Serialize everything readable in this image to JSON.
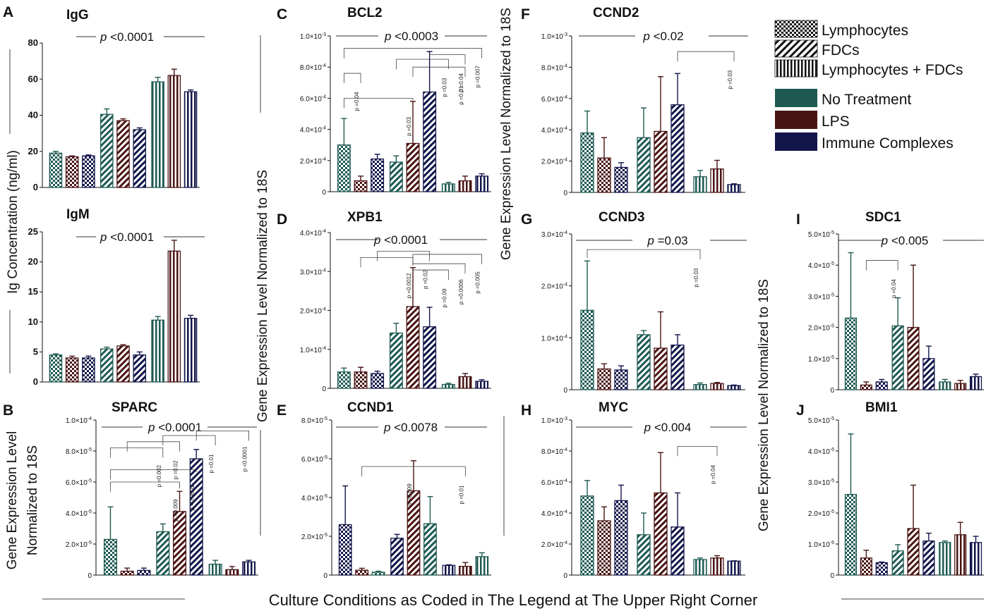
{
  "figure": {
    "x_caption": "Culture Conditions as Coded in The Legend at The Upper Right Corner",
    "ylabel_ig": "Ig Concentration (ng/ml)",
    "ylabel_gene_left": "Gene Expression Level Normalized to 18S",
    "ylabel_gene_mid": "Gene Expression Level Normalized to 18S",
    "ylabel_gene_right": "Gene Expression Level Normalized to 18S",
    "ylabel_sparc": [
      "Gene Expression Level",
      "Normalized to 18S"
    ]
  },
  "legend": {
    "patterns": [
      "Lymphocytes",
      "FDCs",
      "Lymphocytes + FDCs"
    ],
    "treatments": [
      "No Treatment",
      "LPS",
      "Immune Complexes"
    ]
  },
  "colors": {
    "no_treatment": "#1e5a52",
    "lps": "#4a1414",
    "immune_complexes": "#13164a",
    "pattern_lymphocytes": "checker",
    "pattern_fdcs": "diagonal",
    "pattern_lymph_fdcs": "vertical"
  },
  "chart_data": [
    {
      "id": "A",
      "title": "IgG",
      "type": "bar",
      "unit": "ng/ml",
      "ylim": [
        0,
        80
      ],
      "ticks": [
        "0",
        "20",
        "40",
        "60",
        "80"
      ],
      "pvalue": "<0.0001",
      "groups": [
        {
          "pattern": "checker",
          "colors": [
            "teal",
            "maroon",
            "navy"
          ],
          "values": [
            19,
            17,
            17.5
          ],
          "errors": [
            1,
            0.5,
            0.5
          ]
        },
        {
          "pattern": "diag",
          "colors": [
            "teal",
            "maroon",
            "navy"
          ],
          "values": [
            40.5,
            37,
            32
          ],
          "errors": [
            3,
            1,
            1
          ]
        },
        {
          "pattern": "vert",
          "colors": [
            "teal",
            "maroon",
            "navy"
          ],
          "values": [
            58.5,
            62,
            53
          ],
          "errors": [
            2.5,
            3.5,
            1
          ]
        }
      ],
      "brackets": []
    },
    {
      "id": "",
      "title": "IgM",
      "type": "bar",
      "unit": "ng/ml",
      "ylim": [
        0,
        25
      ],
      "ticks": [
        "0",
        "5",
        "10",
        "15",
        "20",
        "25"
      ],
      "pvalue": "<0.0001",
      "groups": [
        {
          "pattern": "checker",
          "colors": [
            "teal",
            "maroon",
            "navy"
          ],
          "values": [
            4.5,
            4,
            4
          ],
          "errors": [
            0.2,
            0.3,
            0.3
          ]
        },
        {
          "pattern": "diag",
          "colors": [
            "teal",
            "maroon",
            "navy"
          ],
          "values": [
            5.5,
            6,
            4.5
          ],
          "errors": [
            0.3,
            0.2,
            0.5
          ]
        },
        {
          "pattern": "vert",
          "colors": [
            "teal",
            "maroon",
            "navy"
          ],
          "values": [
            10.3,
            21.8,
            10.6
          ],
          "errors": [
            0.6,
            1.8,
            0.5
          ]
        }
      ],
      "brackets": []
    },
    {
      "id": "B",
      "title": "SPARC",
      "type": "bar",
      "unit": "-5",
      "ylim": [
        0,
        10
      ],
      "ticks": [
        "0",
        "2.0",
        "4.0",
        "6.0",
        "8.0",
        "1.0"
      ],
      "pvalue": "<0.0001",
      "groups": [
        {
          "pattern": "checker",
          "colors": [
            "teal",
            "maroon",
            "navy"
          ],
          "values": [
            2.3,
            0.25,
            0.3
          ],
          "errors": [
            2.1,
            0.2,
            0.15
          ]
        },
        {
          "pattern": "diag",
          "colors": [
            "teal",
            "maroon",
            "navy"
          ],
          "values": [
            2.8,
            4.1,
            7.5
          ],
          "errors": [
            0.5,
            1.3,
            0.6
          ]
        },
        {
          "pattern": "vert",
          "colors": [
            "teal",
            "maroon",
            "navy"
          ],
          "values": [
            0.7,
            0.35,
            0.85
          ],
          "errors": [
            0.25,
            0.2,
            0.1
          ]
        }
      ],
      "brackets": [
        {
          "a": 0,
          "b": 4,
          "level": 0.6,
          "label": "p =0.009"
        },
        {
          "a": 0,
          "b": 5,
          "level": 0.68,
          "label": "p <0.0001"
        },
        {
          "a": 0,
          "b": 3,
          "level": 0.82,
          "label": "p =0.002"
        },
        {
          "a": 1,
          "b": 4,
          "level": 0.86,
          "label": "p =0.02"
        },
        {
          "a": 3,
          "b": 6,
          "level": 0.9,
          "label": "p =0.01"
        },
        {
          "a": 5,
          "b": 8,
          "level": 0.93,
          "label": "p <0.0001"
        }
      ]
    },
    {
      "id": "C",
      "title": "BCL2",
      "type": "bar",
      "unit": "-4",
      "ylim": [
        0,
        10
      ],
      "ticks": [
        "0",
        "2.0",
        "4.0",
        "6.0",
        "8.0",
        "1.0"
      ],
      "pvalue": "<0.0003",
      "groups": [
        {
          "pattern": "checker",
          "colors": [
            "teal",
            "maroon",
            "navy"
          ],
          "values": [
            3.0,
            0.7,
            2.1
          ],
          "errors": [
            1.7,
            0.3,
            0.3
          ]
        },
        {
          "pattern": "diag",
          "colors": [
            "teal",
            "maroon",
            "navy"
          ],
          "values": [
            1.9,
            3.1,
            6.4
          ],
          "errors": [
            0.4,
            2.7,
            2.6
          ]
        },
        {
          "pattern": "vert",
          "colors": [
            "teal",
            "maroon",
            "navy"
          ],
          "values": [
            0.5,
            0.7,
            1.0
          ],
          "errors": [
            0.1,
            0.3,
            0.15
          ]
        }
      ],
      "brackets": [
        {
          "a": 0,
          "b": 1,
          "level": 0.76,
          "label": "p =0.04"
        },
        {
          "a": 0,
          "b": 4,
          "level": 0.6,
          "label": "p =0.03"
        },
        {
          "a": 0,
          "b": 8,
          "level": 0.92,
          "label": "p =0.007"
        },
        {
          "a": 3,
          "b": 6,
          "level": 0.85,
          "label": "p =0.03"
        },
        {
          "a": 4,
          "b": 7,
          "level": 0.8,
          "label": "p =0.01"
        },
        {
          "a": 5,
          "b": 7,
          "level": 0.88,
          "label": "p =0.04"
        }
      ]
    },
    {
      "id": "D",
      "title": "XPB1",
      "type": "bar",
      "unit": "-4",
      "ylim": [
        0,
        4
      ],
      "ticks": [
        "0",
        "1.0",
        "2.0",
        "3.0",
        "4.0"
      ],
      "pvalue": "<0.0001",
      "groups": [
        {
          "pattern": "checker",
          "colors": [
            "teal",
            "maroon",
            "navy"
          ],
          "values": [
            0.42,
            0.42,
            0.38
          ],
          "errors": [
            0.1,
            0.12,
            0.06
          ]
        },
        {
          "pattern": "diag",
          "colors": [
            "teal",
            "maroon",
            "navy"
          ],
          "values": [
            1.42,
            2.1,
            1.58
          ],
          "errors": [
            0.25,
            1.0,
            0.5
          ]
        },
        {
          "pattern": "vert",
          "colors": [
            "teal",
            "maroon",
            "navy"
          ],
          "values": [
            0.1,
            0.3,
            0.18
          ],
          "errors": [
            0.03,
            0.08,
            0.04
          ]
        }
      ],
      "brackets": [
        {
          "a": 1,
          "b": 4,
          "level": 0.84,
          "label": "p =0.0012"
        },
        {
          "a": 2,
          "b": 5,
          "level": 0.88,
          "label": "p =0.02"
        },
        {
          "a": 4,
          "b": 6,
          "level": 0.76,
          "label": "p =0.09"
        },
        {
          "a": 4,
          "b": 7,
          "level": 0.8,
          "label": "p =0.0006"
        },
        {
          "a": 4,
          "b": 8,
          "level": 0.86,
          "label": "p =0.005"
        }
      ]
    },
    {
      "id": "E",
      "title": "CCND1",
      "type": "bar",
      "unit": "-5",
      "ylim": [
        0,
        8
      ],
      "ticks": [
        "0",
        "2.0",
        "4.0",
        "6.0",
        "8.0"
      ],
      "pvalue": "<0.0078",
      "groups": [
        {
          "pattern": "checker",
          "colors": [
            "navy",
            "maroon",
            "teal"
          ],
          "values": [
            2.6,
            0.25,
            0.15
          ],
          "errors": [
            2.0,
            0.1,
            0.05
          ]
        },
        {
          "pattern": "diag",
          "colors": [
            "navy",
            "maroon",
            "teal"
          ],
          "values": [
            1.9,
            4.35,
            2.65
          ],
          "errors": [
            0.2,
            1.55,
            1.4
          ]
        },
        {
          "pattern": "vert",
          "colors": [
            "navy",
            "maroon",
            "teal"
          ],
          "values": [
            0.5,
            0.45,
            0.95
          ],
          "errors": [
            0.03,
            0.2,
            0.2
          ]
        }
      ],
      "brackets": [
        {
          "a": 1,
          "b": 4,
          "level": 0.7,
          "label": "p =0.009"
        },
        {
          "a": 4,
          "b": 7,
          "level": 0.7,
          "label": "p =0.01"
        }
      ]
    },
    {
      "id": "F",
      "title": "CCND2",
      "type": "bar",
      "unit": "-4",
      "ylim": [
        0,
        10
      ],
      "ticks": [
        "0",
        "2.0",
        "4.0",
        "6.0",
        "8.0",
        "1.0"
      ],
      "pvalue": "<0.02",
      "groups": [
        {
          "pattern": "checker",
          "colors": [
            "teal",
            "maroon",
            "navy"
          ],
          "values": [
            3.8,
            2.2,
            1.6
          ],
          "errors": [
            1.4,
            1.3,
            0.3
          ]
        },
        {
          "pattern": "diag",
          "colors": [
            "teal",
            "maroon",
            "navy"
          ],
          "values": [
            3.5,
            3.9,
            5.6
          ],
          "errors": [
            1.9,
            3.5,
            2.0
          ]
        },
        {
          "pattern": "vert",
          "colors": [
            "teal",
            "maroon",
            "navy"
          ],
          "values": [
            1.0,
            1.5,
            0.5
          ],
          "errors": [
            0.4,
            0.55,
            0.05
          ]
        }
      ],
      "brackets": [
        {
          "a": 5,
          "b": 8,
          "level": 0.9,
          "label": "p =0.03"
        }
      ]
    },
    {
      "id": "G",
      "title": "CCND3",
      "type": "bar",
      "unit": "-4",
      "ylim": [
        0,
        3
      ],
      "ticks": [
        "0",
        "1.0",
        "2.0",
        "3.0"
      ],
      "pvalue": "=0.03",
      "groups": [
        {
          "pattern": "checker",
          "colors": [
            "teal",
            "maroon",
            "navy"
          ],
          "values": [
            1.53,
            0.4,
            0.38
          ],
          "errors": [
            0.95,
            0.1,
            0.08
          ]
        },
        {
          "pattern": "diag",
          "colors": [
            "teal",
            "maroon",
            "navy"
          ],
          "values": [
            1.06,
            0.8,
            0.86
          ],
          "errors": [
            0.08,
            0.7,
            0.2
          ]
        },
        {
          "pattern": "vert",
          "colors": [
            "teal",
            "maroon",
            "navy"
          ],
          "values": [
            0.1,
            0.12,
            0.08
          ],
          "errors": [
            0.03,
            0.02,
            0.01
          ]
        }
      ],
      "brackets": [
        {
          "a": 0,
          "b": 6,
          "level": 0.9,
          "label": "p =0.03"
        }
      ]
    },
    {
      "id": "H",
      "title": "MYC",
      "type": "bar",
      "unit": "-4",
      "ylim": [
        0,
        10
      ],
      "ticks": [
        "0",
        "2.0",
        "4.0",
        "6.0",
        "8.0",
        "1.0"
      ],
      "pvalue": "<0.004",
      "groups": [
        {
          "pattern": "checker",
          "colors": [
            "teal",
            "maroon",
            "navy"
          ],
          "values": [
            5.1,
            3.5,
            4.8
          ],
          "errors": [
            1.0,
            0.9,
            1.0
          ]
        },
        {
          "pattern": "diag",
          "colors": [
            "teal",
            "maroon",
            "navy"
          ],
          "values": [
            2.6,
            5.3,
            3.1
          ],
          "errors": [
            1.4,
            2.6,
            2.2
          ]
        },
        {
          "pattern": "vert",
          "colors": [
            "teal",
            "maroon",
            "navy"
          ],
          "values": [
            1.0,
            1.1,
            0.9
          ],
          "errors": [
            0.1,
            0.15,
            0.02
          ]
        }
      ],
      "brackets": [
        {
          "a": 5,
          "b": 7,
          "level": 0.83,
          "label": "p =0.04"
        }
      ]
    },
    {
      "id": "I",
      "title": "SDC1",
      "type": "bar",
      "unit": "-5",
      "ylim": [
        0,
        5
      ],
      "ticks": [
        "0",
        "1.0",
        "2.0",
        "3.0",
        "4.0",
        "5.0"
      ],
      "pvalue": "<0.005",
      "groups": [
        {
          "pattern": "checker",
          "colors": [
            "teal",
            "maroon",
            "navy"
          ],
          "values": [
            2.3,
            0.15,
            0.25
          ],
          "errors": [
            2.1,
            0.1,
            0.08
          ]
        },
        {
          "pattern": "diag",
          "colors": [
            "teal",
            "maroon",
            "navy"
          ],
          "values": [
            2.05,
            2.0,
            1.0
          ],
          "errors": [
            0.9,
            2.0,
            0.4
          ]
        },
        {
          "pattern": "vert",
          "colors": [
            "teal",
            "maroon",
            "navy"
          ],
          "values": [
            0.25,
            0.2,
            0.42
          ],
          "errors": [
            0.08,
            0.1,
            0.08
          ]
        }
      ],
      "brackets": [
        {
          "a": 1,
          "b": 3,
          "level": 0.83,
          "label": "p =0.04"
        }
      ]
    },
    {
      "id": "J",
      "title": "BMI1",
      "type": "bar",
      "unit": "-5",
      "ylim": [
        0,
        5
      ],
      "ticks": [
        "0",
        "1.0",
        "2.0",
        "3.0",
        "4.0",
        "5.0"
      ],
      "pvalue": "",
      "groups": [
        {
          "pattern": "checker",
          "colors": [
            "teal",
            "maroon",
            "navy"
          ],
          "values": [
            2.6,
            0.55,
            0.4
          ],
          "errors": [
            1.95,
            0.25,
            0.02
          ]
        },
        {
          "pattern": "diag",
          "colors": [
            "teal",
            "maroon",
            "navy"
          ],
          "values": [
            0.78,
            1.5,
            1.1
          ],
          "errors": [
            0.2,
            1.4,
            0.25
          ]
        },
        {
          "pattern": "vert",
          "colors": [
            "teal",
            "maroon",
            "navy"
          ],
          "values": [
            1.05,
            1.3,
            1.05
          ],
          "errors": [
            0.05,
            0.4,
            0.2
          ]
        }
      ],
      "brackets": []
    }
  ]
}
